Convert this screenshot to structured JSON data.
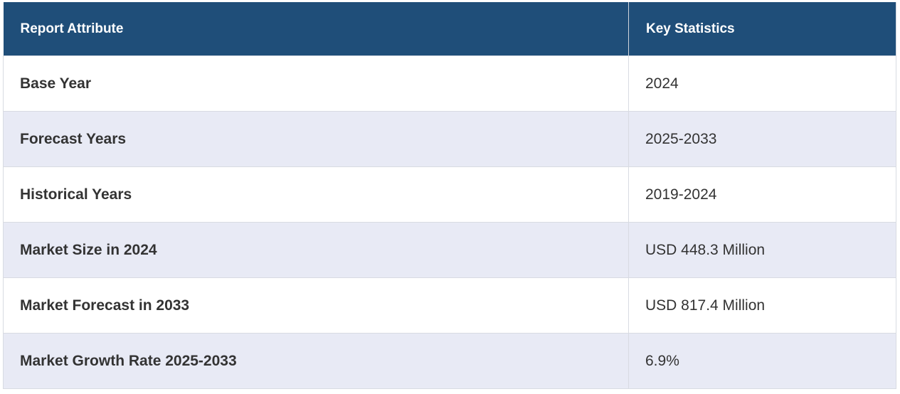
{
  "table": {
    "header": [
      "Report Attribute",
      "Key Statistics"
    ],
    "rows": [
      [
        "Base Year",
        "2024"
      ],
      [
        "Forecast Years",
        "2025-2033"
      ],
      [
        "Historical Years",
        "2019-2024"
      ],
      [
        "Market Size in 2024",
        "USD 448.3 Million"
      ],
      [
        "Market Forecast in 2033",
        "USD 817.4 Million"
      ],
      [
        "Market Growth Rate 2025-2033",
        "6.9%"
      ]
    ]
  }
}
